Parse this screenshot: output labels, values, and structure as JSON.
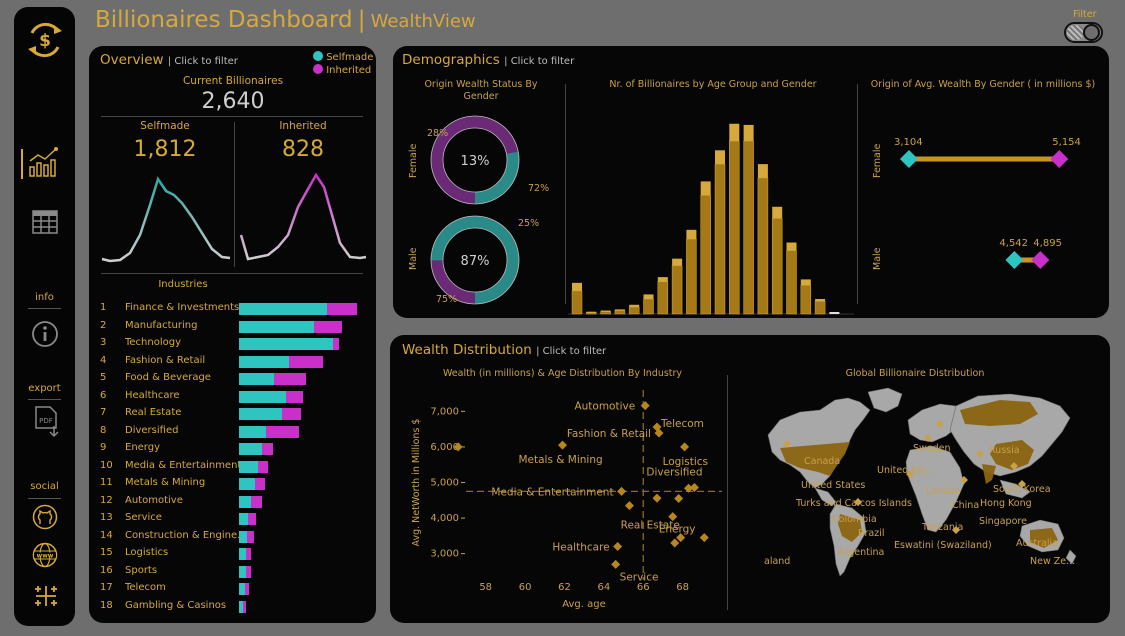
{
  "header": {
    "title": "Billionaires Dashboard",
    "separator": "|",
    "brand": "WealthView",
    "filter_label": "Filter"
  },
  "sidebar": {
    "logo_icon": "dollar-refresh-icon",
    "nav": [
      {
        "icon": "chart-icon",
        "active": true
      },
      {
        "icon": "table-icon",
        "active": false
      }
    ],
    "info_label": "info",
    "export_label": "export",
    "social_label": "social",
    "pdf_label": "PDF"
  },
  "overview": {
    "title": "Overview",
    "subtitle": "| Click to filter",
    "legend": [
      {
        "name": "Selfmade",
        "color": "#2ec4c0"
      },
      {
        "name": "Inherited",
        "color": "#c930c9"
      }
    ],
    "current_label": "Current Billionaires",
    "current_value": "2,640",
    "selfmade_label": "Selfmade",
    "selfmade_value": "1,812",
    "inherited_label": "Inherited",
    "inherited_value": "828",
    "industries_label": "Industries",
    "industries": [
      {
        "rank": "1",
        "name": "Finance & Investments",
        "selfmade": 88,
        "inherited": 30
      },
      {
        "rank": "2",
        "name": "Manufacturing",
        "selfmade": 75,
        "inherited": 28
      },
      {
        "rank": "3",
        "name": "Technology",
        "selfmade": 94,
        "inherited": 6
      },
      {
        "rank": "4",
        "name": "Fashion & Retail",
        "selfmade": 50,
        "inherited": 34
      },
      {
        "rank": "5",
        "name": "Food & Beverage",
        "selfmade": 35,
        "inherited": 32
      },
      {
        "rank": "6",
        "name": "Healthcare",
        "selfmade": 47,
        "inherited": 17
      },
      {
        "rank": "7",
        "name": "Real Estate",
        "selfmade": 43,
        "inherited": 19
      },
      {
        "rank": "8",
        "name": "Diversified",
        "selfmade": 27,
        "inherited": 33
      },
      {
        "rank": "9",
        "name": "Energy",
        "selfmade": 23,
        "inherited": 11
      },
      {
        "rank": "10",
        "name": "Media & Entertainment",
        "selfmade": 19,
        "inherited": 10
      },
      {
        "rank": "11",
        "name": "Metals & Mining",
        "selfmade": 16,
        "inherited": 10
      },
      {
        "rank": "12",
        "name": "Automotive",
        "selfmade": 12,
        "inherited": 11
      },
      {
        "rank": "13",
        "name": "Service",
        "selfmade": 9,
        "inherited": 8
      },
      {
        "rank": "14",
        "name": "Construction & Engine...",
        "selfmade": 8,
        "inherited": 7
      },
      {
        "rank": "15",
        "name": "Logistics",
        "selfmade": 7,
        "inherited": 5
      },
      {
        "rank": "16",
        "name": "Sports",
        "selfmade": 7,
        "inherited": 5
      },
      {
        "rank": "17",
        "name": "Telecom",
        "selfmade": 6,
        "inherited": 4
      },
      {
        "rank": "18",
        "name": "Gambling & Casinos",
        "selfmade": 4,
        "inherited": 3
      }
    ]
  },
  "demographics": {
    "title": "Demographics",
    "subtitle": "| Click to filter",
    "donut_title": "Origin Wealth Status By Gender",
    "female_label": "Female",
    "male_label": "Male",
    "female_donut": {
      "selfmade_pct": 28,
      "inherited_pct": 72,
      "center": "13%",
      "left_label": "28%",
      "right_label": "72%"
    },
    "male_donut": {
      "selfmade_pct": 75,
      "inherited_pct": 25,
      "center": "87%",
      "left_label": "75%",
      "right_label": "25%"
    },
    "age_title": "Nr. of Billionaires by Age Group and Gender",
    "avg_title": "Origin of Avg. Wealth By Gender ( in millions $)",
    "female_avg": {
      "selfmade": 3104,
      "inherited": 5154,
      "selfmade_label": "3,104",
      "inherited_label": "5,154"
    },
    "male_avg": {
      "selfmade": 4542,
      "inherited": 4895,
      "selfmade_label": "4,542",
      "inherited_label": "4,895"
    }
  },
  "wealth": {
    "title": "Wealth Distribution",
    "subtitle": "| Click to filter",
    "scatter_title": "Wealth (in millions) & Age Distribution By Industry",
    "map_title": "Global Billionaire Distribution",
    "map_labels": [
      "Sweden",
      "Russia",
      "Canada",
      "United Kin...",
      "United States",
      "London",
      "South Korea",
      "China",
      "Turks and Caicos Islands",
      "Hong Kong",
      "Colombia",
      "Singapore",
      "Tanzania",
      "Brazil",
      "Australia",
      "Eswatini (Swaziland)",
      "Argentina",
      "aland",
      "New Ze..."
    ]
  },
  "chart_data": [
    {
      "type": "bar",
      "title": "Nr. of Billionaires by Age Group and Gender",
      "stacked": true,
      "series": [
        {
          "name": "Male",
          "color": "#a57a16",
          "values": [
            20,
            1,
            2,
            3,
            6,
            13,
            28,
            42,
            65,
            103,
            130,
            150,
            150,
            118,
            83,
            55,
            25,
            11,
            1
          ]
        },
        {
          "name": "Female",
          "color": "#d6a93a",
          "values": [
            7,
            1,
            1,
            1,
            2,
            4,
            4,
            6,
            8,
            12,
            12,
            15,
            14,
            12,
            10,
            7,
            5,
            2,
            0
          ]
        }
      ],
      "ylim": [
        0,
        170
      ]
    },
    {
      "type": "scatter",
      "title": "Wealth (in millions) & Age Distribution By Industry",
      "xlabel": "Avg. age",
      "ylabel": "Avg. NetWorth in Millions $",
      "xlim": [
        57,
        70
      ],
      "ylim": [
        2400,
        7600
      ],
      "xticks": [
        58,
        60,
        62,
        64,
        66,
        68
      ],
      "yticks": [
        3000,
        4000,
        5000,
        6000,
        7000
      ],
      "ytick_labels": [
        "3,000",
        "4,000",
        "5,000",
        "6,000",
        "7,000"
      ],
      "ref_x": 66.0,
      "ref_y": 4750,
      "points": [
        {
          "label": "Automotive",
          "x": 66.1,
          "y": 7160
        },
        {
          "label": "Telecom",
          "x": 66.7,
          "y": 6560
        },
        {
          "label": "Fashion & Retail",
          "x": 66.8,
          "y": 6390
        },
        {
          "label": "Metals & Mining",
          "x": 61.9,
          "y": 6050
        },
        {
          "label": "",
          "x": 56.6,
          "y": 6000
        },
        {
          "label": "Logistics",
          "x": 68.1,
          "y": 6000
        },
        {
          "label": "Diversified",
          "x": 68.6,
          "y": 4860
        },
        {
          "label": "",
          "x": 68.3,
          "y": 4840
        },
        {
          "label": "Media & Entertainment",
          "x": 64.9,
          "y": 4750
        },
        {
          "label": "",
          "x": 66.7,
          "y": 4560
        },
        {
          "label": "",
          "x": 67.8,
          "y": 4550
        },
        {
          "label": "",
          "x": 65.3,
          "y": 4350
        },
        {
          "label": "Energy",
          "x": 67.5,
          "y": 4040
        },
        {
          "label": "Real Estate",
          "x": 67.9,
          "y": 3450
        },
        {
          "label": "",
          "x": 69.1,
          "y": 3450
        },
        {
          "label": "",
          "x": 67.6,
          "y": 3300
        },
        {
          "label": "Healthcare",
          "x": 64.7,
          "y": 3200
        },
        {
          "label": "Service",
          "x": 64.6,
          "y": 2700
        }
      ]
    }
  ]
}
